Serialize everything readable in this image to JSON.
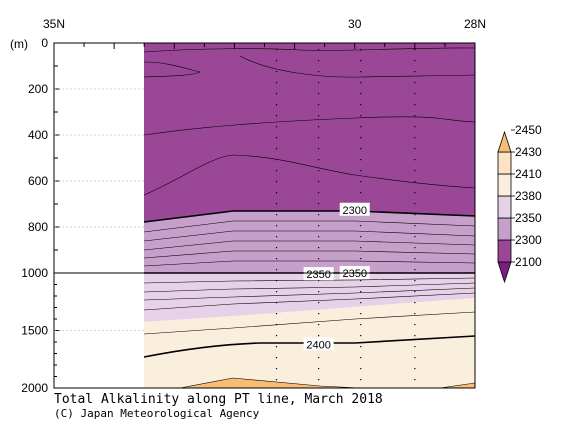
{
  "chart_data": {
    "type": "contour-section",
    "title": "Total Alkalinity along PT line, March 2018",
    "credit": "(C) Japan Meteorological Agency",
    "y_unit_label": "(m)",
    "x_axis": {
      "range": [
        35,
        28
      ],
      "ticks": [
        {
          "value": 35,
          "label": "35N"
        },
        {
          "value": 30,
          "label": "30"
        },
        {
          "value": 28,
          "label": "28N"
        }
      ],
      "data_start": 31.3
    },
    "y_axis": {
      "upper_range": [
        0,
        1000
      ],
      "upper_ticks": [
        0,
        200,
        400,
        600,
        800,
        1000
      ],
      "lower_range": [
        1000,
        2000
      ],
      "lower_ticks": [
        1500,
        2000
      ],
      "break_at": 1000
    },
    "stations": [
      31.3,
      30.6,
      29.9,
      29.0
    ],
    "colorbar": {
      "levels": [
        "2100",
        "2300",
        "2350",
        "2380",
        "2410",
        "2430",
        "2450"
      ],
      "colors": [
        "#7a1e83",
        "#9a4798",
        "#c6a0cb",
        "#e6d1e8",
        "#faeedd",
        "#fde3c4",
        "#f7bd75"
      ]
    },
    "contour_labels": [
      {
        "text": "2300",
        "lat": 30.0,
        "depth": 725
      },
      {
        "text": "2350",
        "lat": 30.6,
        "depth": 1010
      },
      {
        "text": "2350",
        "lat": 30.0,
        "depth": 1000
      },
      {
        "text": "2400",
        "lat": 30.6,
        "depth": 1620
      }
    ]
  }
}
